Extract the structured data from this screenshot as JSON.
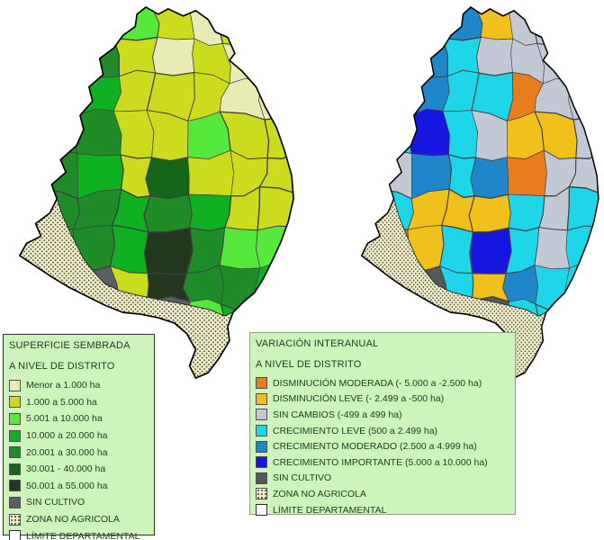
{
  "page": {
    "background": "#ffffff"
  },
  "map_render": {
    "zona_bg": "#f2f0cc",
    "zona_dot": "#3c3c28",
    "district_border": "#3f3f3f",
    "department_border": "#000000",
    "palettes": {
      "superficie": {
        "m": "#e9ebb4",
        "y": "#cbdc1f",
        "l": "#57e83e",
        "g": "#0fb022",
        "d": "#1f8c28",
        "k": "#156619",
        "b": "#23391f",
        "s": "#595f63"
      },
      "variacion": {
        "o": "#e87d1e",
        "w": "#f0c01c",
        "n": "#c2c9d4",
        "c": "#1fd6e8",
        "u": "#1f86c9",
        "e": "#1715e0",
        "s": "#53585c"
      }
    },
    "grid_superficie": [
      "dddlymyy",
      "dddymymy",
      "gggyyymm",
      "dddyylyy",
      "ddgykyyy",
      "gddgdgyy",
      "zgdgbdll",
      "zzsybddg",
      "zzlmslgg",
      "zzzzzzzz"
    ],
    "grid_variacion": [
      "uuuuwnnn",
      "uuucnnnn",
      "ccucconn",
      "ccecnwwn",
      "unucuonn",
      "ucwwwcnc",
      "zowcecnc",
      "zzscwucc",
      "zzccsccc",
      "zzzzzzzz"
    ]
  },
  "legend_left": {
    "title_line1": "SUPERFICIE SEMBRADA",
    "title_line2": "A NIVEL DE DISTRITO",
    "items": [
      {
        "label": "Menor a 1.000 ha",
        "color": "#e9ebb4"
      },
      {
        "label": "1.000 a 5.000 ha",
        "color": "#cbdc1f"
      },
      {
        "label": "5.001 a 10.000 ha",
        "color": "#57e83e"
      },
      {
        "label": "10.000 a 20.000 ha",
        "color": "#0fb022"
      },
      {
        "label": "20.001 a 30.000 ha",
        "color": "#1f8c28"
      },
      {
        "label": "30.001 - 40.000 ha",
        "color": "#156619"
      },
      {
        "label": "50.001 a 55.000 ha",
        "color": "#23391f"
      },
      {
        "label": "SIN CULTIVO",
        "color": "#595f63"
      },
      {
        "label": "ZONA NO AGRICOLA",
        "type": "dots"
      },
      {
        "label": "LÍMITE DEPARTAMENTAL",
        "type": "outline"
      }
    ]
  },
  "legend_right": {
    "title_line1": "VARIACIÓN INTERANUAL",
    "title_line2": "A NIVEL DE DISTRITO",
    "items": [
      {
        "label": "DISMINUCIÓN MODERADA (- 5.000 a -2.500 ha)",
        "color": "#e87d1e"
      },
      {
        "label": "DISMINUCIÓN LEVE (- 2.499 a -500 ha)",
        "color": "#f0c01c"
      },
      {
        "label": "SIN CAMBIOS (-499 a 499 ha)",
        "color": "#c2c9d4"
      },
      {
        "label": "CRECIMIENTO LEVE (500 a 2.499 ha)",
        "color": "#1fd6e8"
      },
      {
        "label": "CRECIMIENTO MODERADO (2.500 a 4.999 ha)",
        "color": "#1f86c9"
      },
      {
        "label": "CRECIMIENTO IMPORTANTE (5.000 a 10.000 ha)",
        "color": "#1715e0"
      },
      {
        "label": "SIN CULTIVO",
        "color": "#53585c"
      },
      {
        "label": "ZONA NO AGRICOLA",
        "type": "dots"
      },
      {
        "label": "LÍMITE DEPARTAMENTAL",
        "type": "outline"
      }
    ]
  }
}
